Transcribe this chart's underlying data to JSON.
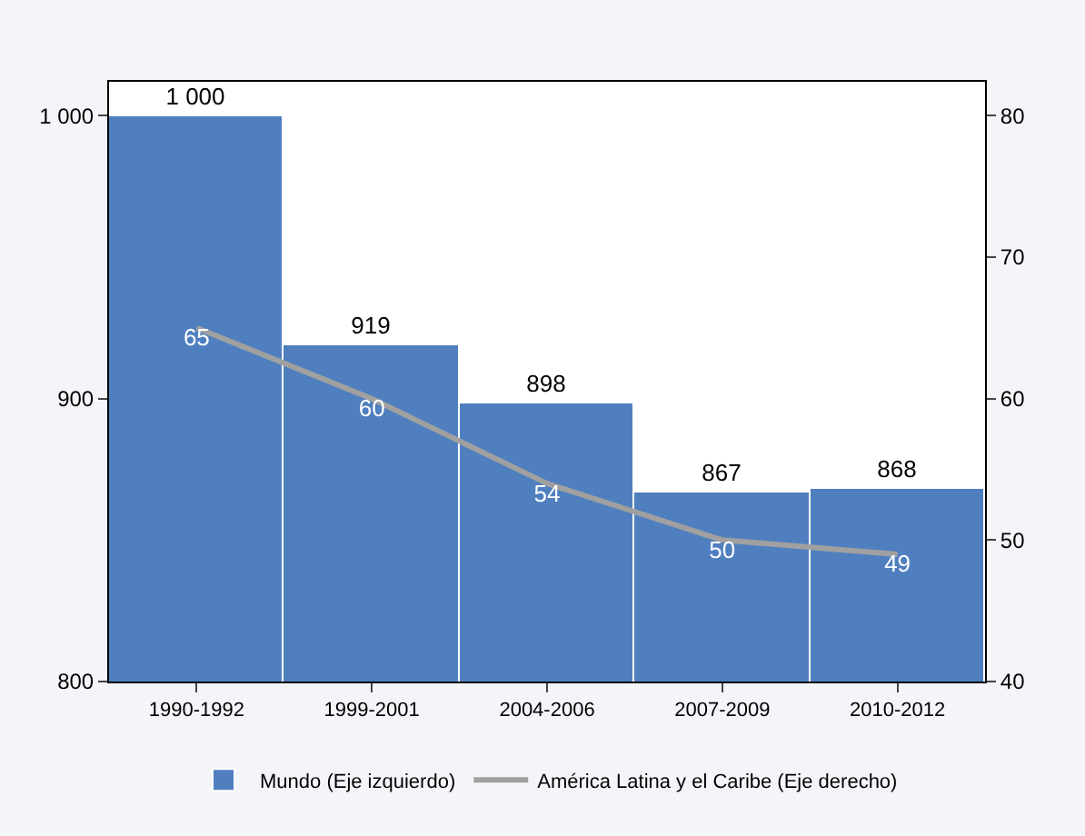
{
  "chart_data": {
    "type": "bar",
    "categories": [
      "1990-1992",
      "1999-2001",
      "2004-2006",
      "2007-2009",
      "2010-2012"
    ],
    "series": [
      {
        "name": "Mundo (Eje izquierdo)",
        "color": "#4f7fbf",
        "values": [
          1000,
          919,
          898,
          867,
          868
        ],
        "value_labels": [
          "1 000",
          "919",
          "898",
          "867",
          "868"
        ]
      },
      {
        "name": "América Latina y el Caribe (Eje derecho)",
        "type": "line",
        "axis": "y2",
        "color": "#a0a0a0",
        "values": [
          65,
          60,
          54,
          50,
          49
        ],
        "value_labels": [
          "65",
          "60",
          "54",
          "50",
          "49"
        ]
      }
    ],
    "ylim": [
      800,
      1012
    ],
    "yticks": [
      800,
      900,
      {
        "value": 1000,
        "label": "1 000"
      }
    ],
    "y2lim": [
      40,
      82.4
    ],
    "y2ticks": [
      40,
      50,
      60,
      70,
      80
    ],
    "legend": "bottom",
    "marker": "none",
    "line_style": "solid"
  }
}
